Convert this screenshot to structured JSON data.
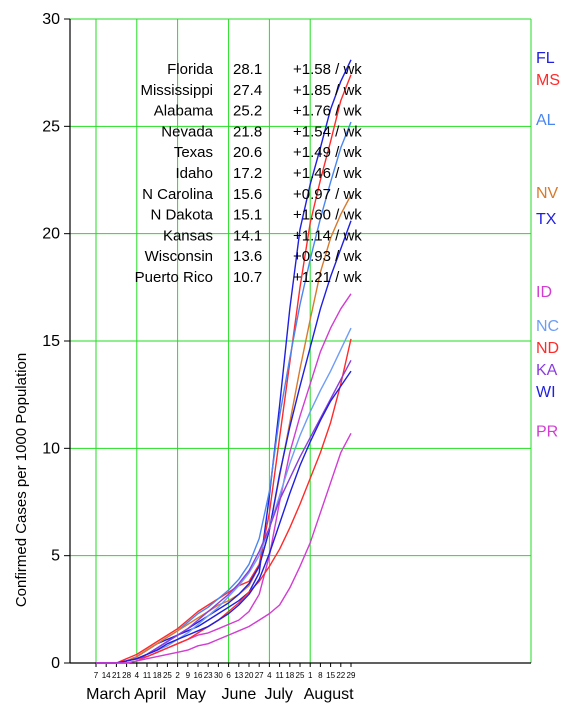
{
  "chart_data": {
    "type": "line",
    "title": "",
    "xlabel": "",
    "ylabel": "Confirmed Cases per 1000 Population",
    "ylim": [
      0,
      30
    ],
    "yticks": [
      0,
      5,
      10,
      15,
      20,
      25,
      30
    ],
    "grid": true,
    "x_day_ticks": [
      "7",
      "14",
      "21",
      "28",
      "4",
      "11",
      "18",
      "25",
      "2",
      "9",
      "16",
      "23",
      "30",
      "6",
      "13",
      "20",
      "27",
      "4",
      "11",
      "18",
      "25",
      "1",
      "8",
      "15",
      "22",
      "29"
    ],
    "months": [
      "March",
      "April",
      "May",
      "June",
      "July",
      "August"
    ],
    "legend_table": [
      {
        "state": "Florida",
        "value": "28.1",
        "rate": "+1.58 / wk"
      },
      {
        "state": "Mississippi",
        "value": "27.4",
        "rate": "+1.85 / wk"
      },
      {
        "state": "Alabama",
        "value": "25.2",
        "rate": "+1.76 / wk"
      },
      {
        "state": "Nevada",
        "value": "21.8",
        "rate": "+1.54 / wk"
      },
      {
        "state": "Texas",
        "value": "20.6",
        "rate": "+1.49 / wk"
      },
      {
        "state": "Idaho",
        "value": "17.2",
        "rate": "+1.46 / wk"
      },
      {
        "state": "N Carolina",
        "value": "15.6",
        "rate": "+0.97 / wk"
      },
      {
        "state": "N Dakota",
        "value": "15.1",
        "rate": "+1.60 / wk"
      },
      {
        "state": "Kansas",
        "value": "14.1",
        "rate": "+1.14 / wk"
      },
      {
        "state": "Wisconsin",
        "value": "13.6",
        "rate": "+0.93 / wk"
      },
      {
        "state": "Puerto Rico",
        "value": "10.7",
        "rate": "+1.21 / wk"
      }
    ],
    "series": [
      {
        "name": "FL",
        "color": "#1f1fe0",
        "values": [
          0,
          0,
          0,
          0.1,
          0.3,
          0.6,
          0.9,
          1.1,
          1.3,
          1.5,
          1.7,
          2.0,
          2.3,
          2.6,
          2.9,
          3.3,
          4.2,
          7.8,
          12.0,
          16.5,
          20.2,
          22.3,
          24.0,
          25.8,
          27.1,
          28.1
        ]
      },
      {
        "name": "MS",
        "color": "#ff2a2a",
        "values": [
          0,
          0,
          0,
          0.2,
          0.4,
          0.7,
          1.0,
          1.3,
          1.6,
          2.0,
          2.4,
          2.7,
          3.0,
          3.3,
          3.6,
          3.8,
          4.6,
          7.0,
          10.5,
          14.0,
          17.5,
          20.5,
          22.5,
          24.3,
          26.2,
          27.4
        ]
      },
      {
        "name": "AL",
        "color": "#4a86f0",
        "values": [
          0,
          0,
          0,
          0.1,
          0.3,
          0.6,
          0.9,
          1.2,
          1.5,
          1.9,
          2.3,
          2.6,
          3.0,
          3.4,
          3.9,
          4.6,
          5.8,
          8.0,
          11.5,
          14.2,
          16.7,
          18.8,
          20.7,
          22.4,
          24.0,
          25.2
        ]
      },
      {
        "name": "NV",
        "color": "#d77a2c",
        "values": [
          0,
          0,
          0,
          0.1,
          0.3,
          0.6,
          0.9,
          1.2,
          1.5,
          1.8,
          2.1,
          2.4,
          2.7,
          2.9,
          3.2,
          3.6,
          4.5,
          6.2,
          8.7,
          11.2,
          13.7,
          16.0,
          18.2,
          19.8,
          20.9,
          21.8
        ]
      },
      {
        "name": "TX",
        "color": "#1f1fe0",
        "values": [
          0,
          0,
          0,
          0.1,
          0.2,
          0.4,
          0.7,
          1.0,
          1.3,
          1.6,
          1.9,
          2.2,
          2.5,
          2.8,
          3.2,
          3.7,
          4.5,
          6.2,
          8.8,
          11.0,
          12.9,
          14.7,
          16.5,
          18.0,
          19.3,
          20.6
        ]
      },
      {
        "name": "ID",
        "color": "#d23cd2",
        "values": [
          0,
          0,
          0,
          0,
          0.1,
          0.3,
          0.5,
          0.7,
          0.9,
          1.1,
          1.3,
          1.4,
          1.6,
          1.8,
          2.0,
          2.4,
          3.2,
          5.0,
          7.5,
          9.8,
          11.5,
          13.0,
          14.5,
          15.6,
          16.5,
          17.2
        ]
      },
      {
        "name": "NC",
        "color": "#6f9df5",
        "values": [
          0,
          0,
          0,
          0.1,
          0.2,
          0.4,
          0.6,
          0.8,
          1.1,
          1.4,
          1.8,
          2.2,
          2.6,
          3.1,
          3.6,
          4.2,
          5.0,
          6.3,
          7.8,
          9.3,
          10.6,
          11.7,
          12.7,
          13.6,
          14.6,
          15.6
        ]
      },
      {
        "name": "ND",
        "color": "#ff2a2a",
        "values": [
          0,
          0,
          0,
          0.1,
          0.2,
          0.3,
          0.5,
          0.7,
          0.9,
          1.1,
          1.4,
          1.7,
          2.0,
          2.4,
          2.8,
          3.3,
          3.8,
          4.5,
          5.3,
          6.3,
          7.4,
          8.6,
          9.8,
          11.2,
          13.0,
          15.1
        ]
      },
      {
        "name": "KA",
        "color": "#8a3ddb",
        "values": [
          0,
          0,
          0,
          0.1,
          0.2,
          0.4,
          0.7,
          1.0,
          1.3,
          1.6,
          2.0,
          2.4,
          2.8,
          3.2,
          3.7,
          4.3,
          5.2,
          6.3,
          7.6,
          8.6,
          9.6,
          10.5,
          11.4,
          12.3,
          13.2,
          14.1
        ]
      },
      {
        "name": "WI",
        "color": "#1f1fe0",
        "values": [
          0,
          0,
          0,
          0.1,
          0.2,
          0.4,
          0.6,
          0.9,
          1.1,
          1.3,
          1.5,
          1.7,
          2.0,
          2.3,
          2.7,
          3.2,
          3.9,
          5.1,
          6.5,
          7.9,
          9.2,
          10.3,
          11.3,
          12.2,
          12.9,
          13.6
        ]
      },
      {
        "name": "PR",
        "color": "#d23cd2",
        "values": [
          0,
          0,
          0,
          0,
          0.1,
          0.2,
          0.3,
          0.4,
          0.5,
          0.6,
          0.8,
          0.9,
          1.1,
          1.3,
          1.5,
          1.7,
          2.0,
          2.3,
          2.7,
          3.5,
          4.5,
          5.6,
          7.0,
          8.4,
          9.8,
          10.7
        ]
      }
    ]
  }
}
